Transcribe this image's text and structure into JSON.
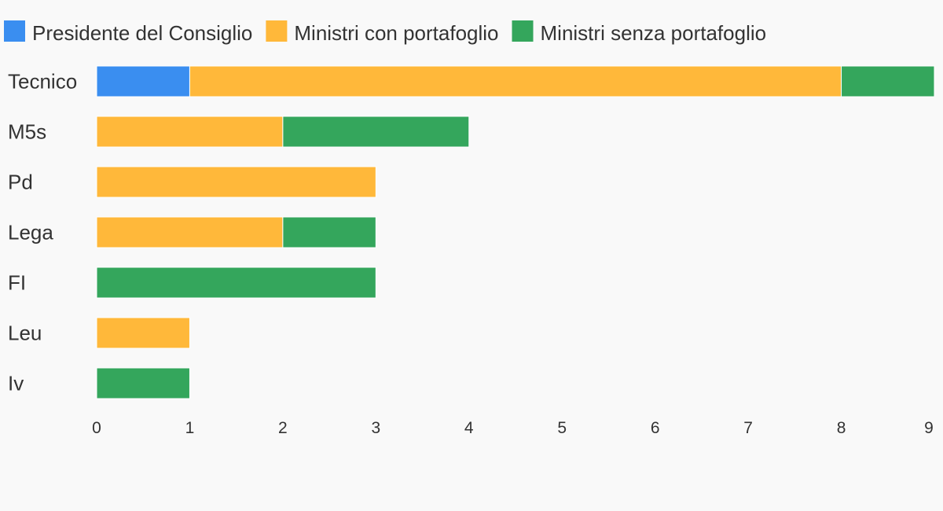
{
  "chart_data": {
    "type": "bar",
    "orientation": "horizontal",
    "stacked": true,
    "title": "",
    "xlabel": "",
    "ylabel": "",
    "categories": [
      "Tecnico",
      "M5s",
      "Pd",
      "Lega",
      "FI",
      "Leu",
      "Iv"
    ],
    "series": [
      {
        "name": "Presidente del Consiglio",
        "color": "#3a8ef0",
        "values": [
          1,
          0,
          0,
          0,
          0,
          0,
          0
        ]
      },
      {
        "name": "Ministri con portafoglio",
        "color": "#ffb83a",
        "values": [
          7,
          2,
          3,
          2,
          0,
          1,
          0
        ]
      },
      {
        "name": "Ministri senza portafoglio",
        "color": "#34a65c",
        "values": [
          1,
          2,
          0,
          1,
          3,
          0,
          1
        ]
      }
    ],
    "xlim": [
      0,
      9
    ],
    "xticks": [
      "0",
      "1",
      "2",
      "3",
      "4",
      "5",
      "6",
      "7",
      "8",
      "9"
    ],
    "grid": false,
    "legend_position": "top-left"
  }
}
